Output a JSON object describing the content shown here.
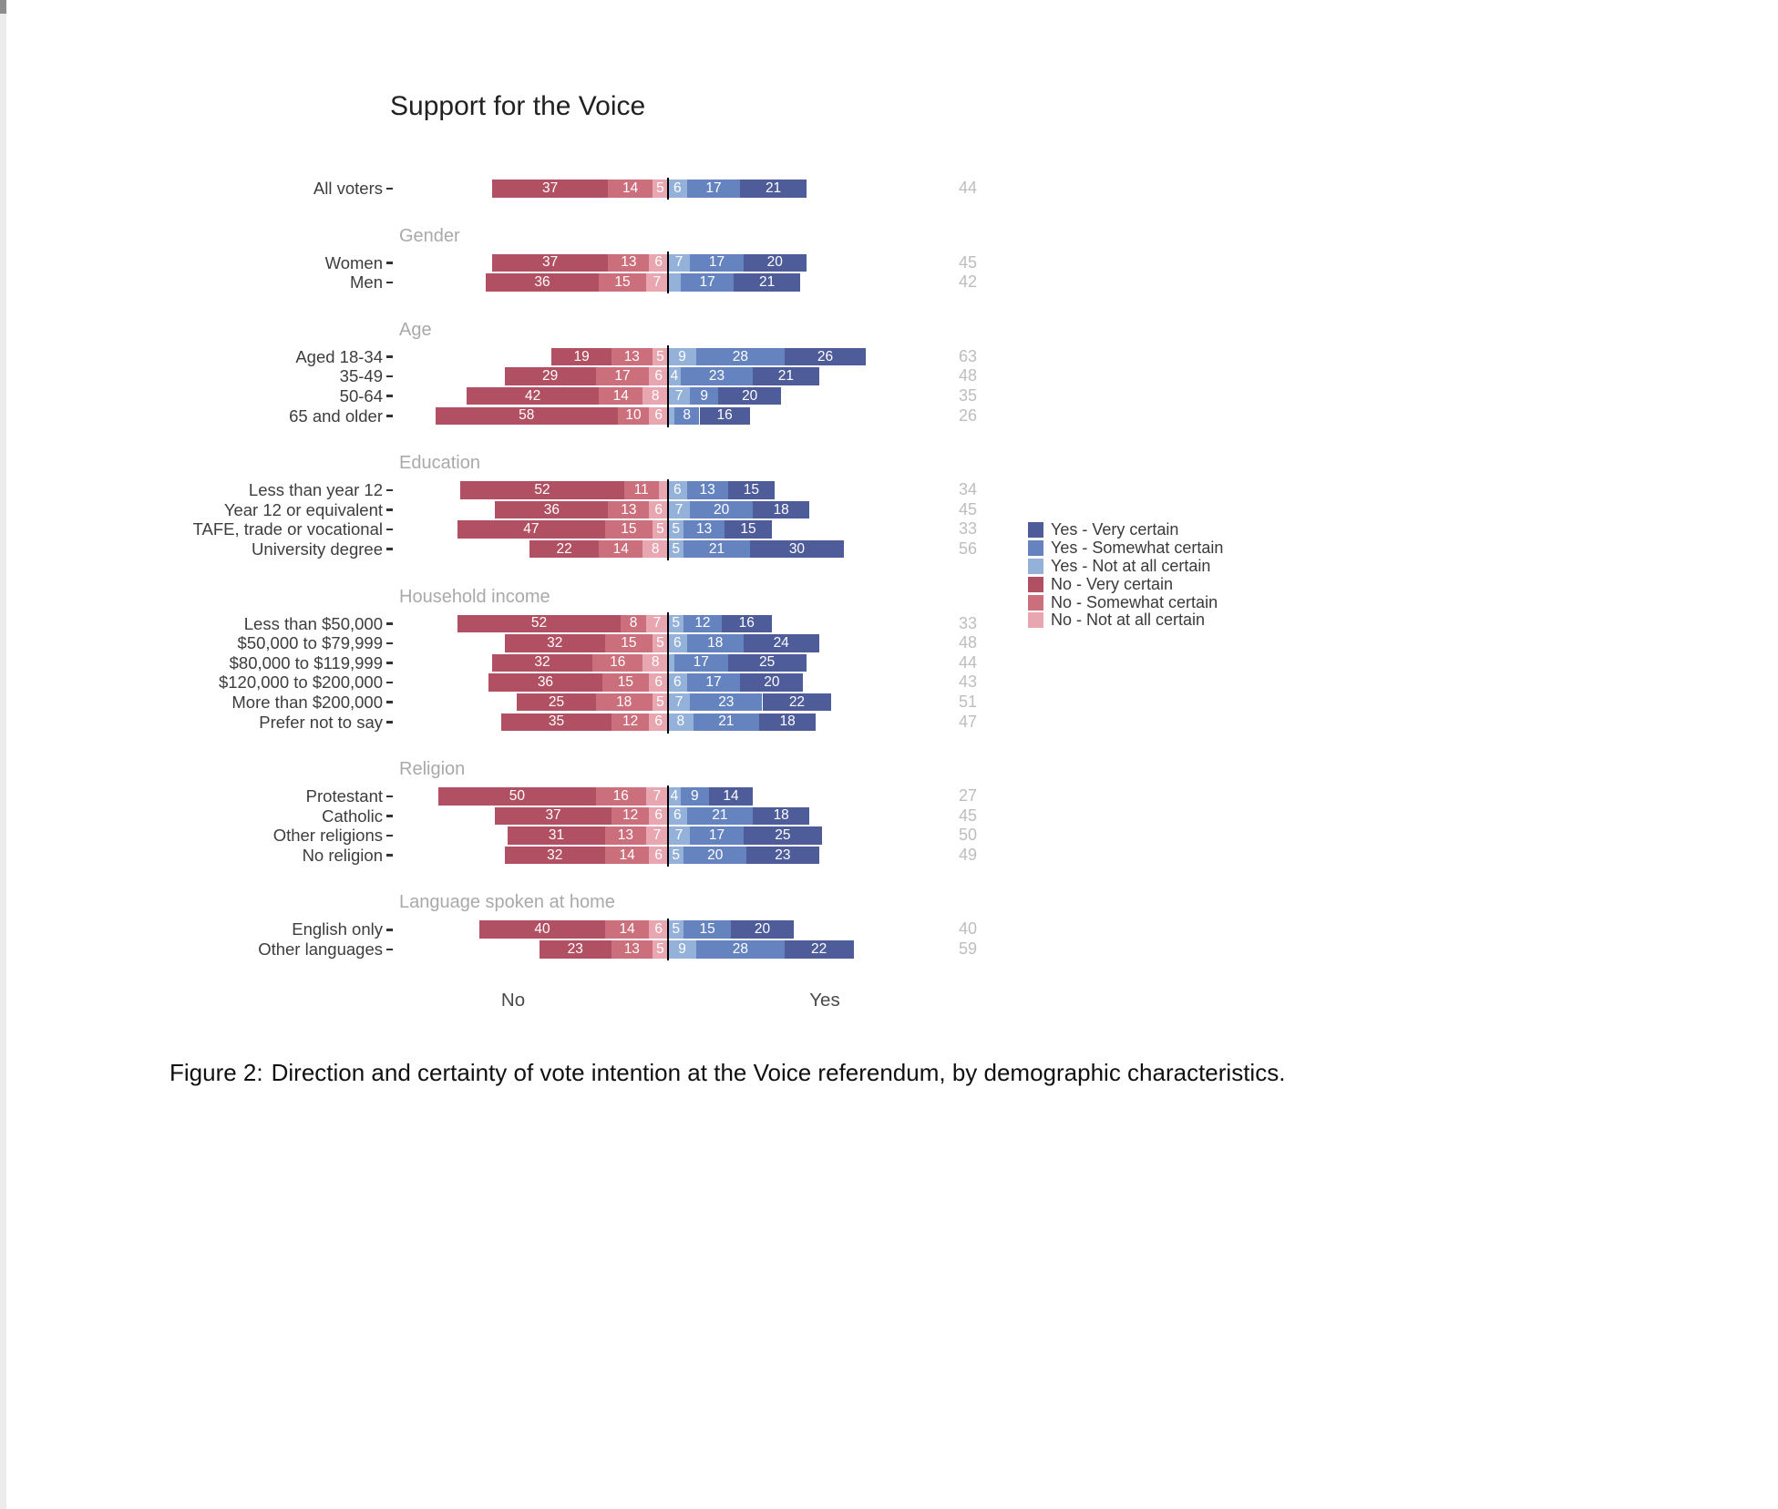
{
  "page": {
    "caption_prefix": "Figure 2:",
    "caption_text": "Direction and certainty of vote intention at the Voice referendum, by demographic characteristics."
  },
  "colors": {
    "no": [
      "#b05062",
      "#ca6f7b",
      "#e7a6b0"
    ],
    "yes": [
      "#94b1d9",
      "#6584bf",
      "#4e5c99"
    ],
    "center_line": "#000000",
    "row_label": "#3d3d3d",
    "group_header": "#a9a9a9",
    "total_value": "#bdbdbd"
  },
  "legend": [
    {
      "label": "Yes - Very certain",
      "color": "#4e5c99"
    },
    {
      "label": "Yes - Somewhat certain",
      "color": "#6584bf"
    },
    {
      "label": "Yes - Not at all certain",
      "color": "#94b1d9"
    },
    {
      "label": "No - Very certain",
      "color": "#b05062"
    },
    {
      "label": "No - Somewhat certain",
      "color": "#ca6f7b"
    },
    {
      "label": "No - Not at all certain",
      "color": "#e7a6b0"
    }
  ],
  "chart_data": {
    "type": "diverging_stacked_bar",
    "title": "Support for the Voice",
    "unit": "percent",
    "xlabels": {
      "no": "No",
      "yes": "Yes"
    },
    "legend_position": "right",
    "series_order_no_left_to_right": [
      "No - Very certain",
      "No - Somewhat certain",
      "No - Not at all certain"
    ],
    "series_order_yes_left_to_right": [
      "Yes - Not at all certain",
      "Yes - Somewhat certain",
      "Yes - Very certain"
    ],
    "right_column_meaning": "Total Yes percent",
    "groups": [
      {
        "header": null,
        "rows": [
          {
            "label": "All voters",
            "no": [
              [
                37,
                "37"
              ],
              [
                14,
                "14"
              ],
              [
                5,
                "5"
              ]
            ],
            "yes": [
              [
                6,
                "6"
              ],
              [
                17,
                "17"
              ],
              [
                21,
                "21"
              ]
            ],
            "total": 44
          }
        ]
      },
      {
        "header": "Gender",
        "rows": [
          {
            "label": "Women",
            "no": [
              [
                37,
                "37"
              ],
              [
                13,
                "13"
              ],
              [
                6,
                "6"
              ]
            ],
            "yes": [
              [
                7,
                "7"
              ],
              [
                17,
                "17"
              ],
              [
                20,
                "20"
              ]
            ],
            "total": 45
          },
          {
            "label": "Men",
            "no": [
              [
                36,
                "36"
              ],
              [
                15,
                "15"
              ],
              [
                7,
                "7"
              ]
            ],
            "yes": [
              [
                4,
                ""
              ],
              [
                17,
                "17"
              ],
              [
                21,
                "21"
              ]
            ],
            "total": 42
          }
        ]
      },
      {
        "header": "Age",
        "rows": [
          {
            "label": "Aged 18-34",
            "no": [
              [
                19,
                "19"
              ],
              [
                13,
                "13"
              ],
              [
                5,
                "5"
              ]
            ],
            "yes": [
              [
                9,
                "9"
              ],
              [
                28,
                "28"
              ],
              [
                26,
                "26"
              ]
            ],
            "total": 63
          },
          {
            "label": "35-49",
            "no": [
              [
                29,
                "29"
              ],
              [
                17,
                "17"
              ],
              [
                6,
                "6"
              ]
            ],
            "yes": [
              [
                4,
                "4"
              ],
              [
                23,
                "23"
              ],
              [
                21,
                "21"
              ]
            ],
            "total": 48
          },
          {
            "label": "50-64",
            "no": [
              [
                42,
                "42"
              ],
              [
                14,
                "14"
              ],
              [
                8,
                "8"
              ]
            ],
            "yes": [
              [
                7,
                "7"
              ],
              [
                9,
                "9"
              ],
              [
                20,
                "20"
              ]
            ],
            "total": 35
          },
          {
            "label": "65 and older",
            "no": [
              [
                58,
                "58"
              ],
              [
                10,
                "10"
              ],
              [
                6,
                "6"
              ]
            ],
            "yes": [
              [
                2,
                ""
              ],
              [
                8,
                "8"
              ],
              [
                16,
                "16"
              ]
            ],
            "total": 26
          }
        ]
      },
      {
        "header": "Education",
        "rows": [
          {
            "label": "Less than year 12",
            "no": [
              [
                52,
                "52"
              ],
              [
                11,
                "11"
              ],
              [
                3,
                ""
              ]
            ],
            "yes": [
              [
                6,
                "6"
              ],
              [
                13,
                "13"
              ],
              [
                15,
                "15"
              ]
            ],
            "total": 34
          },
          {
            "label": "Year 12 or equivalent",
            "no": [
              [
                36,
                "36"
              ],
              [
                13,
                "13"
              ],
              [
                6,
                "6"
              ]
            ],
            "yes": [
              [
                7,
                "7"
              ],
              [
                20,
                "20"
              ],
              [
                18,
                "18"
              ]
            ],
            "total": 45
          },
          {
            "label": "TAFE, trade or vocational",
            "no": [
              [
                47,
                "47"
              ],
              [
                15,
                "15"
              ],
              [
                5,
                "5"
              ]
            ],
            "yes": [
              [
                5,
                "5"
              ],
              [
                13,
                "13"
              ],
              [
                15,
                "15"
              ]
            ],
            "total": 33
          },
          {
            "label": "University degree",
            "no": [
              [
                22,
                "22"
              ],
              [
                14,
                "14"
              ],
              [
                8,
                "8"
              ]
            ],
            "yes": [
              [
                5,
                "5"
              ],
              [
                21,
                "21"
              ],
              [
                30,
                "30"
              ]
            ],
            "total": 56
          }
        ]
      },
      {
        "header": "Household income",
        "rows": [
          {
            "label": "Less than $50,000",
            "no": [
              [
                52,
                "52"
              ],
              [
                8,
                "8"
              ],
              [
                7,
                "7"
              ]
            ],
            "yes": [
              [
                5,
                "5"
              ],
              [
                12,
                "12"
              ],
              [
                16,
                "16"
              ]
            ],
            "total": 33
          },
          {
            "label": "$50,000 to $79,999",
            "no": [
              [
                32,
                "32"
              ],
              [
                15,
                "15"
              ],
              [
                5,
                "5"
              ]
            ],
            "yes": [
              [
                6,
                "6"
              ],
              [
                18,
                "18"
              ],
              [
                24,
                "24"
              ]
            ],
            "total": 48
          },
          {
            "label": "$80,000 to $119,999",
            "no": [
              [
                32,
                "32"
              ],
              [
                16,
                "16"
              ],
              [
                8,
                "8"
              ]
            ],
            "yes": [
              [
                2,
                ""
              ],
              [
                17,
                "17"
              ],
              [
                25,
                "25"
              ]
            ],
            "total": 44
          },
          {
            "label": "$120,000 to $200,000",
            "no": [
              [
                36,
                "36"
              ],
              [
                15,
                "15"
              ],
              [
                6,
                "6"
              ]
            ],
            "yes": [
              [
                6,
                "6"
              ],
              [
                17,
                "17"
              ],
              [
                20,
                "20"
              ]
            ],
            "total": 43
          },
          {
            "label": "More than $200,000",
            "no": [
              [
                25,
                "25"
              ],
              [
                18,
                "18"
              ],
              [
                5,
                "5"
              ]
            ],
            "yes": [
              [
                7,
                "7"
              ],
              [
                23,
                "23"
              ],
              [
                22,
                "22"
              ]
            ],
            "total": 51
          },
          {
            "label": "Prefer not to say",
            "no": [
              [
                35,
                "35"
              ],
              [
                12,
                "12"
              ],
              [
                6,
                "6"
              ]
            ],
            "yes": [
              [
                8,
                "8"
              ],
              [
                21,
                "21"
              ],
              [
                18,
                "18"
              ]
            ],
            "total": 47
          }
        ]
      },
      {
        "header": "Religion",
        "rows": [
          {
            "label": "Protestant",
            "no": [
              [
                50,
                "50"
              ],
              [
                16,
                "16"
              ],
              [
                7,
                "7"
              ]
            ],
            "yes": [
              [
                4,
                "4"
              ],
              [
                9,
                "9"
              ],
              [
                14,
                "14"
              ]
            ],
            "total": 27
          },
          {
            "label": "Catholic",
            "no": [
              [
                37,
                "37"
              ],
              [
                12,
                "12"
              ],
              [
                6,
                "6"
              ]
            ],
            "yes": [
              [
                6,
                "6"
              ],
              [
                21,
                "21"
              ],
              [
                18,
                "18"
              ]
            ],
            "total": 45
          },
          {
            "label": "Other religions",
            "no": [
              [
                31,
                "31"
              ],
              [
                13,
                "13"
              ],
              [
                7,
                "7"
              ]
            ],
            "yes": [
              [
                7,
                "7"
              ],
              [
                17,
                "17"
              ],
              [
                25,
                "25"
              ]
            ],
            "total": 50
          },
          {
            "label": "No religion",
            "no": [
              [
                32,
                "32"
              ],
              [
                14,
                "14"
              ],
              [
                6,
                "6"
              ]
            ],
            "yes": [
              [
                5,
                "5"
              ],
              [
                20,
                "20"
              ],
              [
                23,
                "23"
              ]
            ],
            "total": 49
          }
        ]
      },
      {
        "header": "Language spoken at home",
        "rows": [
          {
            "label": "English only",
            "no": [
              [
                40,
                "40"
              ],
              [
                14,
                "14"
              ],
              [
                6,
                "6"
              ]
            ],
            "yes": [
              [
                5,
                "5"
              ],
              [
                15,
                "15"
              ],
              [
                20,
                "20"
              ]
            ],
            "total": 40
          },
          {
            "label": "Other languages",
            "no": [
              [
                23,
                "23"
              ],
              [
                13,
                "13"
              ],
              [
                5,
                "5"
              ]
            ],
            "yes": [
              [
                9,
                "9"
              ],
              [
                28,
                "28"
              ],
              [
                22,
                "22"
              ]
            ],
            "total": 59
          }
        ]
      }
    ]
  }
}
